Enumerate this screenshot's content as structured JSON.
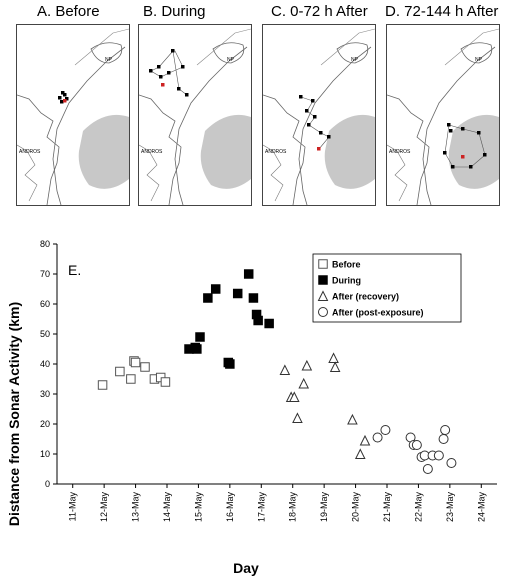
{
  "panels": [
    {
      "id": "A",
      "title": "A. Before",
      "np_label": "NP",
      "andros_label": "ANDROS"
    },
    {
      "id": "B",
      "title": "B. During",
      "np_label": "NP",
      "andros_label": "ANDROS"
    },
    {
      "id": "C",
      "title": "C. 0-72 h After",
      "np_label": "NP",
      "andros_label": "ANDROS"
    },
    {
      "id": "D",
      "title": "D. 72-144 h After",
      "np_label": "NP",
      "andros_label": "ANDROS"
    }
  ],
  "colors": {
    "marker": "#000000",
    "red_marker": "#cc2222",
    "sonar_area": "#c8c8c8"
  },
  "chart_data": {
    "type": "scatter",
    "panel_label": "E.",
    "xlabel": "Day",
    "ylabel": "Distance from Sonar Activity  (km)",
    "x_categories": [
      "11-May",
      "12-May",
      "13-May",
      "14-May",
      "15-May",
      "16-May",
      "17-May",
      "18-May",
      "19-May",
      "20-May",
      "21-May",
      "22-May",
      "23-May",
      "24-May"
    ],
    "ylim": [
      0,
      80
    ],
    "yticks": [
      0,
      10,
      20,
      30,
      40,
      50,
      60,
      70,
      80
    ],
    "legend_position": "top-right",
    "series": [
      {
        "name": "Before",
        "marker": "open-square",
        "x": [
          11.95,
          12.5,
          12.85,
          12.95,
          13.0,
          13.3,
          13.6,
          13.8,
          13.95
        ],
        "y": [
          33,
          37.5,
          35,
          41,
          40.5,
          39,
          35,
          35.5,
          34
        ]
      },
      {
        "name": "During",
        "marker": "filled-square",
        "x": [
          14.7,
          14.9,
          14.95,
          15.05,
          15.3,
          15.55,
          15.95,
          16.0,
          16.25,
          16.6,
          16.75,
          16.85,
          16.9,
          17.25
        ],
        "y": [
          45,
          45.5,
          45,
          49,
          62,
          65,
          40.5,
          40,
          63.5,
          70,
          62,
          56.5,
          54.5,
          53.5
        ]
      },
      {
        "name": "After (recovery)",
        "marker": "open-triangle",
        "x": [
          17.75,
          17.95,
          18.05,
          18.15,
          18.35,
          18.45,
          19.3,
          19.35,
          19.9,
          20.15,
          20.3
        ],
        "y": [
          38,
          29,
          29,
          22,
          33.5,
          39.5,
          42,
          39,
          21.5,
          10,
          14.5
        ]
      },
      {
        "name": "After (post-exposure)",
        "marker": "open-circle",
        "x": [
          20.7,
          20.95,
          21.75,
          21.85,
          21.95,
          22.1,
          22.2,
          22.3,
          22.45,
          22.65,
          22.8,
          22.85,
          23.05
        ],
        "y": [
          15.5,
          18,
          15.5,
          13,
          13,
          9,
          9.5,
          5,
          9.5,
          9.5,
          15,
          18,
          7
        ]
      }
    ]
  }
}
